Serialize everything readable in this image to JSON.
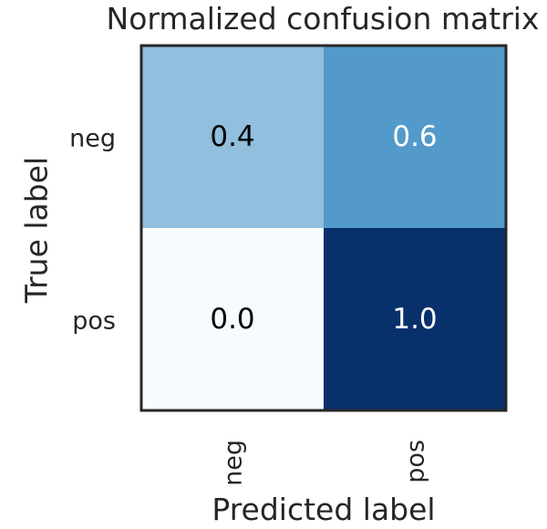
{
  "chart_data": {
    "type": "heatmap",
    "title": "Normalized confusion matrix",
    "xlabel": "Predicted label",
    "ylabel": "True label",
    "x_categories": [
      "neg",
      "pos"
    ],
    "y_categories": [
      "neg",
      "pos"
    ],
    "values": [
      [
        0.4,
        0.6
      ],
      [
        0.0,
        1.0
      ]
    ],
    "value_range": [
      0.0,
      1.0
    ],
    "colormap": "Blues",
    "grid": false,
    "colors": {
      "low": "#f7fbff",
      "mid_low": "#a6cbe3",
      "mid_high": "#3e8ec4",
      "high": "#08306b",
      "text_dark": "#000000",
      "text_light": "#ffffff",
      "frame": "#262626"
    }
  }
}
